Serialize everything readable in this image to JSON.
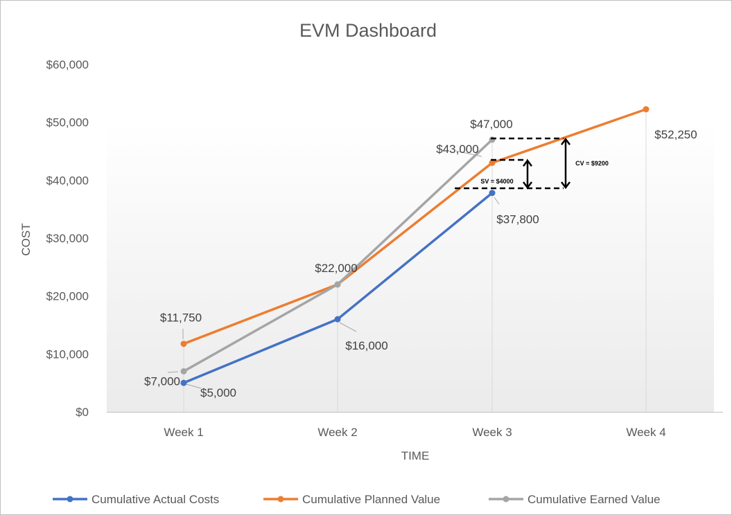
{
  "chart_data": {
    "type": "line",
    "title": "EVM Dashboard",
    "xlabel": "TIME",
    "ylabel": "COST",
    "categories": [
      "Week 1",
      "Week 2",
      "Week 3",
      "Week 4"
    ],
    "ylim": [
      0,
      60000
    ],
    "yticks": [
      0,
      10000,
      20000,
      30000,
      40000,
      50000,
      60000
    ],
    "ytick_labels": [
      "$0",
      "$10,000",
      "$20,000",
      "$30,000",
      "$40,000",
      "$50,000",
      "$60,000"
    ],
    "grid": "vertical",
    "legend_position": "bottom",
    "series": [
      {
        "name": "Cumulative Actual Costs",
        "color": "#4472c4",
        "values": [
          5000,
          16000,
          37800,
          null
        ],
        "labels": [
          "$5,000",
          "$16,000",
          "$37,800",
          ""
        ]
      },
      {
        "name": "Cumulative Planned Value",
        "color": "#ed7d31",
        "values": [
          11750,
          22000,
          43000,
          52250
        ],
        "labels": [
          "$11,750",
          "$22,000",
          "$43,000",
          "$52,250"
        ]
      },
      {
        "name": "Cumulative Earned Value",
        "color": "#a5a5a5",
        "values": [
          7000,
          22000,
          47000,
          null
        ],
        "labels": [
          "$7,000",
          "",
          "$47,000",
          ""
        ]
      }
    ],
    "annotations": [
      {
        "text": "SV = $4000"
      },
      {
        "text": "CV = $9200"
      }
    ]
  }
}
